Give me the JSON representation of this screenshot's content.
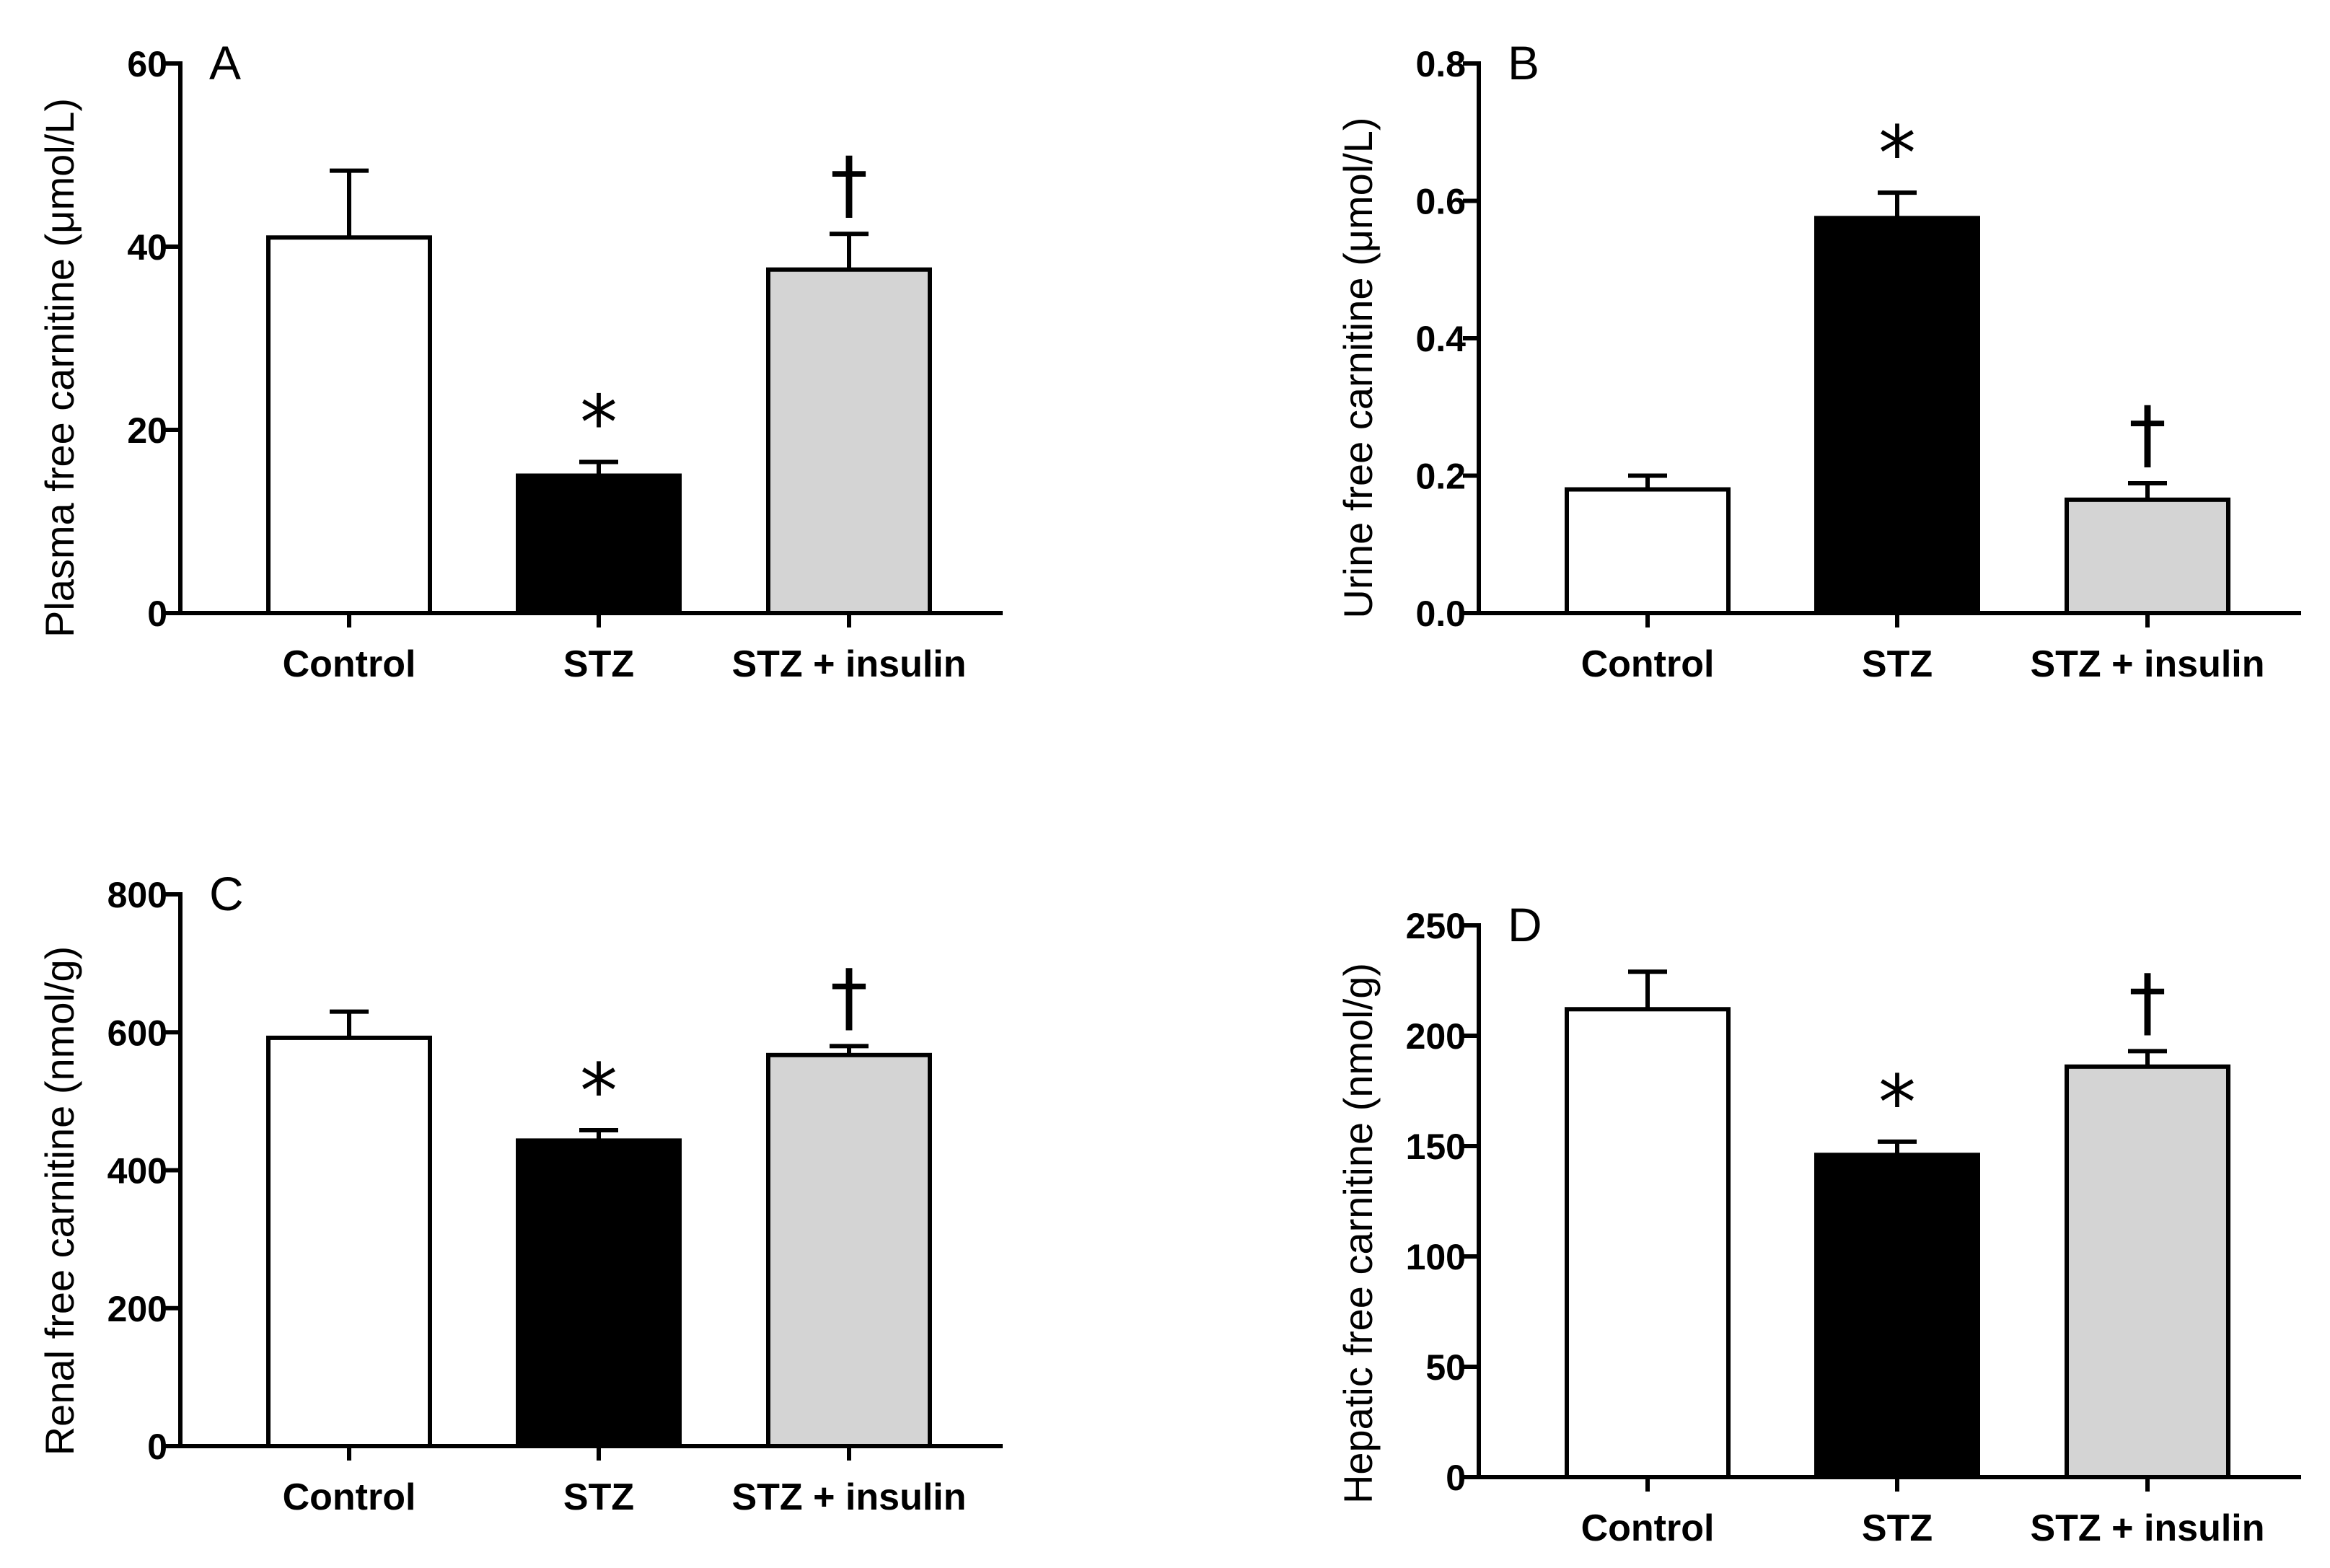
{
  "figure": {
    "groups": [
      "Control",
      "STZ",
      "STZ + insulin"
    ],
    "colors": {
      "Control": "#ffffff",
      "STZ": "#000000",
      "STZ + insulin": "#d4d4d4",
      "axis": "#000000"
    },
    "legend": {
      "star": "*",
      "dagger": "†"
    }
  },
  "chart_data": [
    {
      "panel": "A",
      "type": "bar",
      "ylabel": "Plasma free carnitine (μmol/L)",
      "xlabel": "",
      "categories": [
        "Control",
        "STZ",
        "STZ + insulin"
      ],
      "values": [
        41,
        15,
        37.5
      ],
      "errors": [
        7.3,
        1.5,
        3.9
      ],
      "significance": [
        "",
        "*",
        "†"
      ],
      "ylim": [
        0,
        60
      ],
      "yticks": [
        0,
        20,
        40,
        60
      ],
      "ytick_labels": [
        "0",
        "20",
        "40",
        "60"
      ]
    },
    {
      "panel": "B",
      "type": "bar",
      "ylabel": "Urine free carnitine (μmol/L)",
      "xlabel": "",
      "categories": [
        "Control",
        "STZ",
        "STZ + insulin"
      ],
      "values": [
        0.18,
        0.575,
        0.165
      ],
      "errors": [
        0.02,
        0.037,
        0.024
      ],
      "significance": [
        "",
        "*",
        "†"
      ],
      "ylim": [
        0,
        0.8
      ],
      "yticks": [
        0,
        0.2,
        0.4,
        0.6,
        0.8
      ],
      "ytick_labels": [
        "0.0",
        "0.2",
        "0.4",
        "0.6",
        "0.8"
      ]
    },
    {
      "panel": "C",
      "type": "bar",
      "ylabel": "Renal free carnitine (nmol/g)",
      "xlabel": "",
      "categories": [
        "Control",
        "STZ",
        "STZ + insulin"
      ],
      "values": [
        592,
        443,
        567
      ],
      "errors": [
        38,
        15,
        13
      ],
      "significance": [
        "",
        "*",
        "†"
      ],
      "ylim": [
        0,
        800
      ],
      "yticks": [
        0,
        200,
        400,
        600,
        800
      ],
      "ytick_labels": [
        "0",
        "200",
        "400",
        "600",
        "800"
      ]
    },
    {
      "panel": "D",
      "type": "bar",
      "ylabel": "Hepatic free carnitine (nmol/g)",
      "xlabel": "",
      "categories": [
        "Control",
        "STZ",
        "STZ + insulin"
      ],
      "values": [
        212,
        146,
        186
      ],
      "errors": [
        17,
        6,
        7
      ],
      "significance": [
        "",
        "*",
        "†"
      ],
      "ylim": [
        0,
        250
      ],
      "yticks": [
        0,
        50,
        100,
        150,
        200,
        250
      ],
      "ytick_labels": [
        "0",
        "50",
        "100",
        "150",
        "200",
        "250"
      ]
    }
  ]
}
